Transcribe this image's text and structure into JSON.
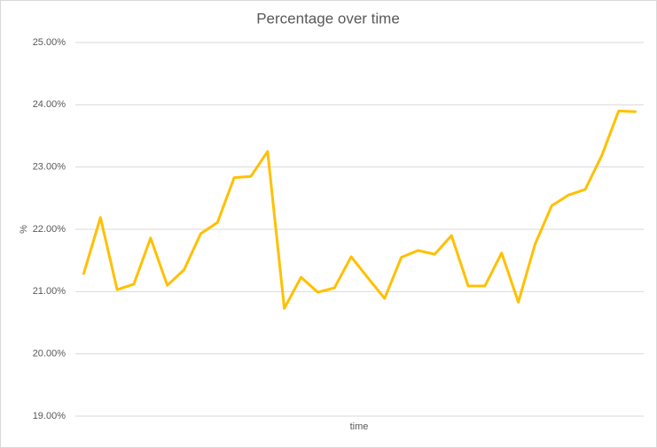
{
  "chart_data": {
    "type": "line",
    "title": "Percentage over time",
    "x_label": "time",
    "y_label": "%",
    "categories": [
      null,
      null,
      null,
      null,
      null,
      null,
      null,
      null,
      null,
      null,
      null,
      null,
      null,
      null,
      null,
      null,
      null,
      null,
      null,
      null,
      null,
      null,
      null,
      null,
      null,
      null,
      null,
      null,
      null,
      null,
      null,
      null,
      null,
      null
    ],
    "series": [
      {
        "color": "#FFC000",
        "values": [
          21.29,
          22.19,
          21.03,
          21.12,
          21.86,
          21.1,
          21.35,
          21.93,
          22.11,
          22.83,
          22.85,
          23.25,
          20.73,
          21.23,
          20.99,
          21.06,
          21.56,
          21.22,
          20.89,
          21.55,
          21.66,
          21.6,
          21.9,
          21.09,
          21.09,
          21.62,
          20.83,
          21.76,
          22.38,
          22.55,
          22.64,
          23.19,
          23.9,
          23.89
        ]
      }
    ],
    "ylim": [
      19,
      25
    ],
    "yticks": [
      {
        "value": 19,
        "label": "19.00%"
      },
      {
        "value": 20,
        "label": "20.00%"
      },
      {
        "value": 21,
        "label": "21.00%"
      },
      {
        "value": 22,
        "label": "22.00%"
      },
      {
        "value": 23,
        "label": "23.00%"
      },
      {
        "value": 24,
        "label": "24.00%"
      },
      {
        "value": 25,
        "label": "25.00%"
      }
    ],
    "grid": true
  }
}
